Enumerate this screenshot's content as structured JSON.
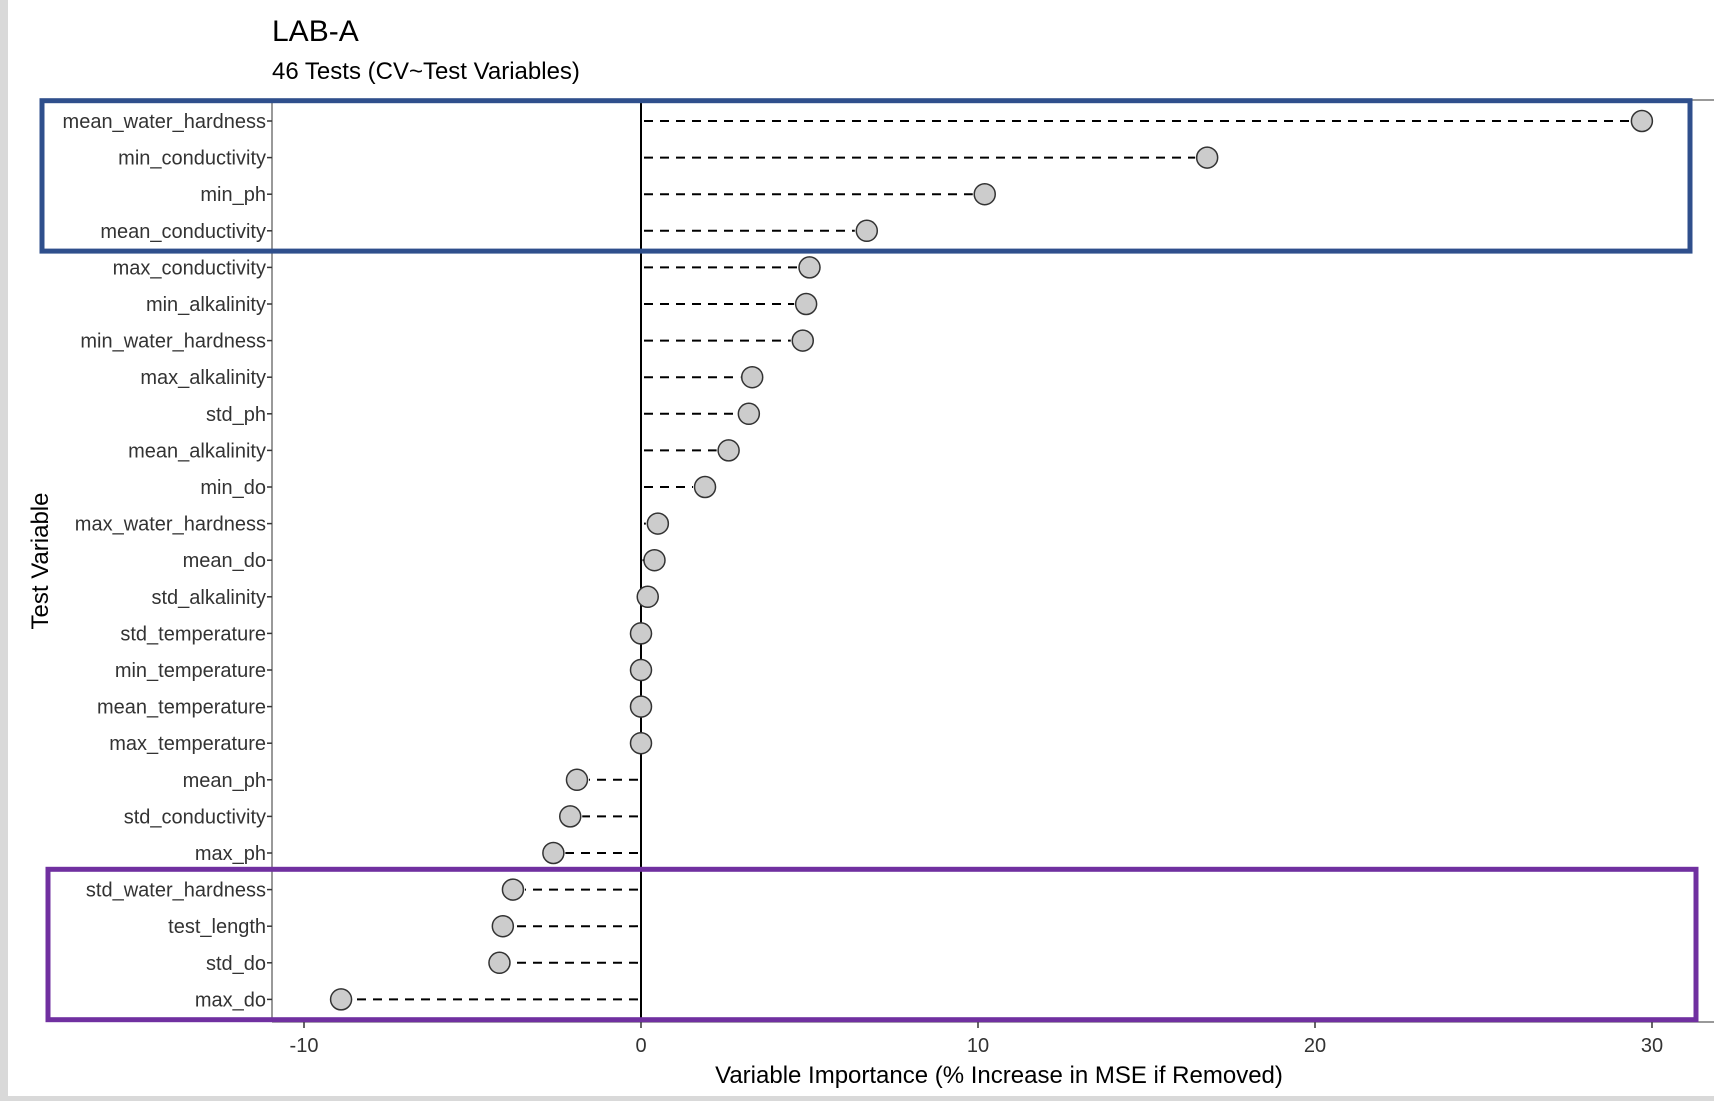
{
  "chart_data": {
    "type": "lollipop",
    "title": "LAB-A",
    "subtitle": "46 Tests   (CV~Test Variables)",
    "xlabel": "Variable Importance (% Increase in MSE if Removed)",
    "ylabel": "Test Variable",
    "xlim": [
      -10.8,
      30.8
    ],
    "xticks": [
      -10,
      0,
      10,
      20,
      30
    ],
    "reference_line": 0,
    "grid": false,
    "colors": {
      "point_fill": "#cccccc",
      "point_stroke": "#333333",
      "segment": "#000000",
      "highlight_top": "#2f4f8c",
      "highlight_bottom": "#7030a0"
    },
    "categories": [
      "mean_water_hardness",
      "min_conductivity",
      "min_ph",
      "mean_conductivity",
      "max_conductivity",
      "min_alkalinity",
      "min_water_hardness",
      "max_alkalinity",
      "std_ph",
      "mean_alkalinity",
      "min_do",
      "max_water_hardness",
      "mean_do",
      "std_alkalinity",
      "std_temperature",
      "min_temperature",
      "mean_temperature",
      "max_temperature",
      "mean_ph",
      "std_conductivity",
      "max_ph",
      "std_water_hardness",
      "test_length",
      "std_do",
      "max_do"
    ],
    "values": [
      29.7,
      16.8,
      10.2,
      6.7,
      5.0,
      4.9,
      4.8,
      3.3,
      3.2,
      2.6,
      1.9,
      0.5,
      0.4,
      0.2,
      0.0,
      0.0,
      0.0,
      0.0,
      -1.9,
      -2.1,
      -2.6,
      -3.8,
      -4.1,
      -4.2,
      -8.9
    ],
    "highlights": [
      {
        "color_key": "highlight_top",
        "first": 0,
        "last": 3
      },
      {
        "color_key": "highlight_bottom",
        "first": 21,
        "last": 24
      }
    ]
  }
}
